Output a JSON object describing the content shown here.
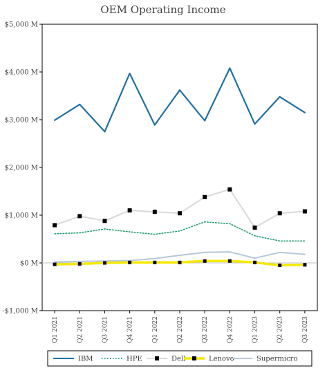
{
  "chart_data": {
    "type": "line",
    "title": "OEM Operating Income",
    "xlabel": "",
    "ylabel": "",
    "categories": [
      "Q1 2021",
      "Q2 2021",
      "Q3 2021",
      "Q4 2021",
      "Q1 2022",
      "Q2 2022",
      "Q3 2022",
      "Q4 2022",
      "Q1 2023",
      "Q2 2023",
      "Q3 2023"
    ],
    "ylim": [
      -1000,
      5000
    ],
    "yticks": [
      -1000,
      0,
      1000,
      2000,
      3000,
      4000,
      5000
    ],
    "ytick_labels": [
      "-$1,000 M",
      "$0 M",
      "$1,000 M",
      "$2,000 M",
      "$3,000 M",
      "$4,000 M",
      "$5,000 M"
    ],
    "grid": false,
    "legend_position": "bottom",
    "series": [
      {
        "name": "IBM",
        "color": "#1f6fa0",
        "style": "solid",
        "marker": "none",
        "values": [
          2990,
          3320,
          2750,
          3970,
          2890,
          3620,
          2980,
          4080,
          2910,
          3480,
          3150
        ]
      },
      {
        "name": "HPE",
        "color": "#1e9e6a",
        "style": "dotted",
        "marker": "none",
        "values": [
          610,
          630,
          710,
          650,
          600,
          670,
          860,
          820,
          570,
          460,
          460
        ]
      },
      {
        "name": "Dell",
        "color": "#d9d9d9",
        "style": "solid",
        "marker": "square",
        "values": [
          790,
          980,
          880,
          1100,
          1070,
          1040,
          1380,
          1540,
          740,
          1040,
          1080
        ]
      },
      {
        "name": "Lenovo",
        "color": "#f5e800",
        "style": "solid",
        "marker": "square",
        "values": [
          -30,
          -20,
          0,
          10,
          10,
          10,
          40,
          40,
          10,
          -50,
          -40
        ]
      },
      {
        "name": "Supermicro",
        "color": "#b7c7db",
        "style": "solid",
        "marker": "none",
        "values": [
          20,
          30,
          40,
          50,
          90,
          160,
          220,
          230,
          100,
          220,
          180
        ]
      }
    ]
  }
}
